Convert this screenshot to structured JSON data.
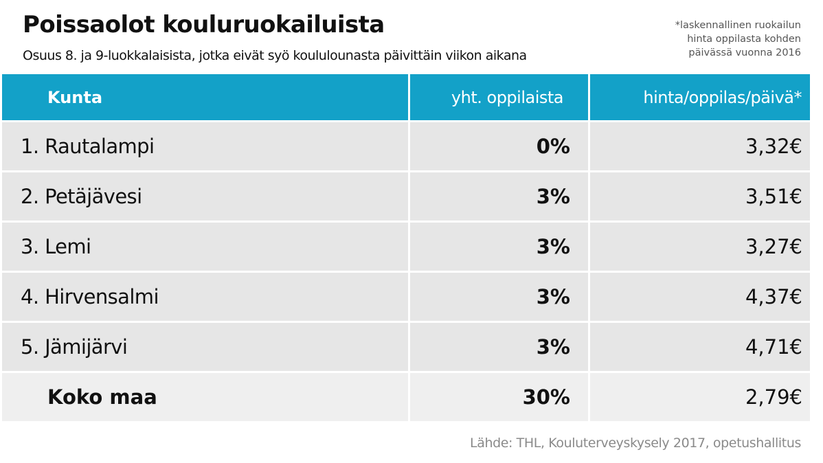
{
  "header": {
    "title": "Poissaolot kouluruokailuista",
    "subtitle": "Osuus 8. ja 9-luokkalaisista, jotka eivät syö koululounasta päivittäin viikon aikana",
    "note_lines": [
      "*laskennallinen ruokailun",
      "hinta oppilasta kohden",
      "päivässä vuonna 2016"
    ]
  },
  "colors": {
    "header_bg": "#13a1c8",
    "header_text": "#ffffff",
    "row_bg": "#e6e6e6",
    "total_bg": "#efefef",
    "source_text": "#8a8a8a"
  },
  "chart_data": {
    "type": "table",
    "title": "Poissaolot kouluruokailuista",
    "columns": [
      "Kunta",
      "yht. oppilaista",
      "hinta/oppilas/päivä*"
    ],
    "rows": [
      {
        "kunta": "1. Rautalampi",
        "oppilaista": "0%",
        "hinta": "3,32€"
      },
      {
        "kunta": "2. Petäjävesi",
        "oppilaista": "3%",
        "hinta": "3,51€"
      },
      {
        "kunta": "3. Lemi",
        "oppilaista": "3%",
        "hinta": "3,27€"
      },
      {
        "kunta": "4. Hirvensalmi",
        "oppilaista": "3%",
        "hinta": "4,37€"
      },
      {
        "kunta": "5. Jämijärvi",
        "oppilaista": "3%",
        "hinta": "4,71€"
      }
    ],
    "total": {
      "kunta": "Koko maa",
      "oppilaista": "30%",
      "hinta": "2,79€"
    }
  },
  "source": "Lähde: THL, Kouluterveyskysely 2017, opetushallitus"
}
